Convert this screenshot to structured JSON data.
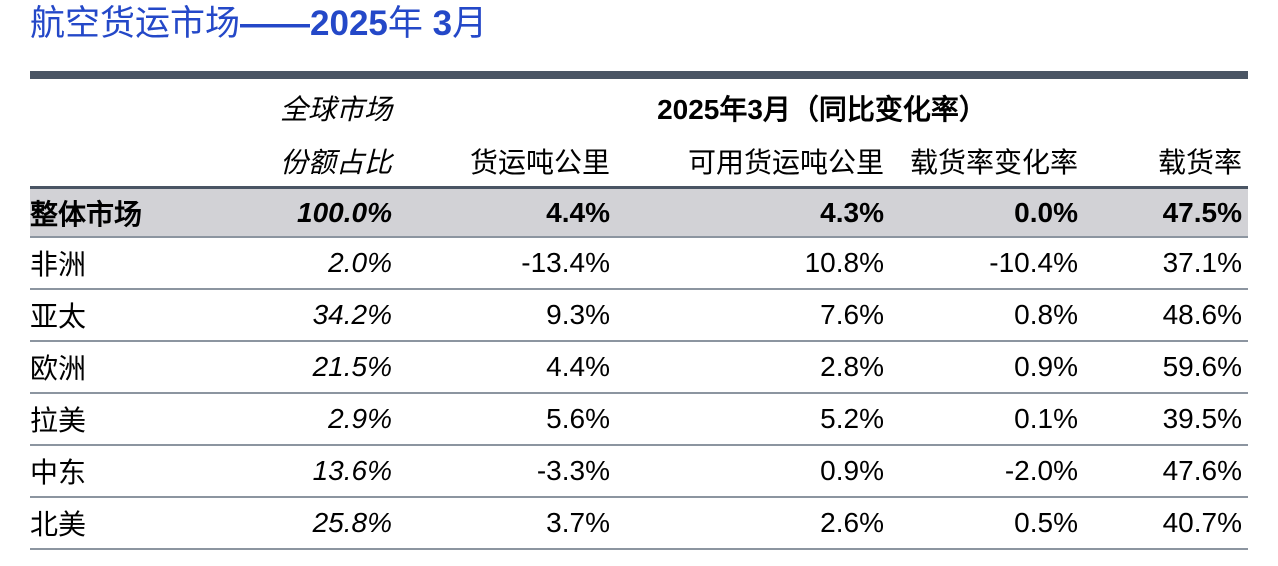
{
  "title": {
    "text": "航空货运市场",
    "bold_part": "——2025",
    "year_char": "年 ",
    "month_bold": "3",
    "month_char": "月"
  },
  "header": {
    "share_line1": "全球市场",
    "share_line2": "份额占比",
    "group": "2025年3月（同比变化率）",
    "col_ftk": "货运吨公里",
    "col_aftk": "可用货运吨公里",
    "col_lf_change": "载货率变化率",
    "col_lf": "载货率"
  },
  "rows": [
    {
      "region": "整体市场",
      "share": "100.0%",
      "ftk": "4.4%",
      "aftk": "4.3%",
      "lf_change": "0.0%",
      "lf": "47.5%"
    },
    {
      "region": "非洲",
      "share": "2.0%",
      "ftk": "-13.4%",
      "aftk": "10.8%",
      "lf_change": "-10.4%",
      "lf": "37.1%"
    },
    {
      "region": "亚太",
      "share": "34.2%",
      "ftk": "9.3%",
      "aftk": "7.6%",
      "lf_change": "0.8%",
      "lf": "48.6%"
    },
    {
      "region": "欧洲",
      "share": "21.5%",
      "ftk": "4.4%",
      "aftk": "2.8%",
      "lf_change": "0.9%",
      "lf": "59.6%"
    },
    {
      "region": "拉美",
      "share": "2.9%",
      "ftk": "5.6%",
      "aftk": "5.2%",
      "lf_change": "0.1%",
      "lf": "39.5%"
    },
    {
      "region": "中东",
      "share": "13.6%",
      "ftk": "-3.3%",
      "aftk": "0.9%",
      "lf_change": "-2.0%",
      "lf": "47.6%"
    },
    {
      "region": "北美",
      "share": "25.8%",
      "ftk": "3.7%",
      "aftk": "2.6%",
      "lf_change": "0.5%",
      "lf": "40.7%"
    }
  ]
}
